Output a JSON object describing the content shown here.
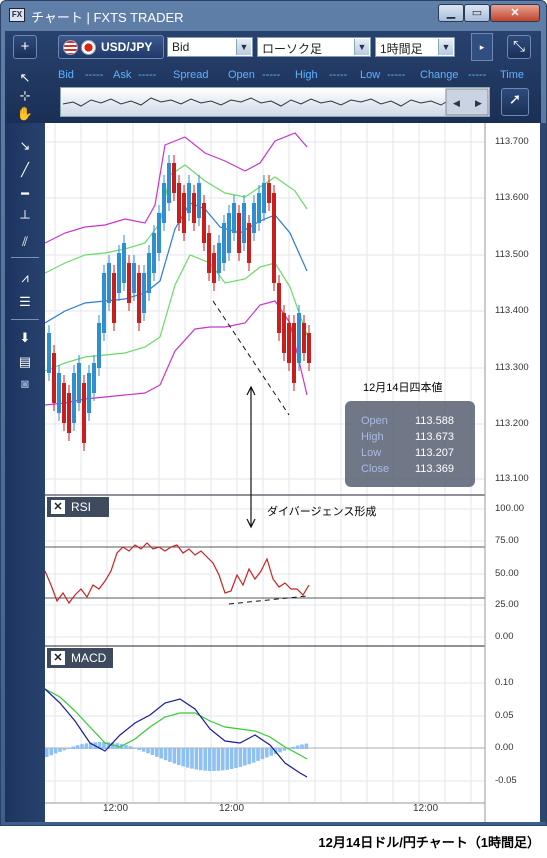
{
  "window": {
    "title": "チャート | FXTS TRADER",
    "icon_text": "FX"
  },
  "toolbar": {
    "add_symbol": "+",
    "symbol": "USD/JPY",
    "price_type": "Bid",
    "chart_type": "ローソク足",
    "timeframe": "1時間足",
    "quote_labels": [
      {
        "label": "Bid",
        "value": "-----"
      },
      {
        "label": "Ask",
        "value": "-----"
      },
      {
        "label": "Spread",
        "value": ""
      },
      {
        "label": "Open",
        "value": "-----"
      },
      {
        "label": "High",
        "value": "-----"
      },
      {
        "label": "Low",
        "value": "-----"
      },
      {
        "label": "Change",
        "value": "-----"
      },
      {
        "label": "Time",
        "value": ""
      }
    ]
  },
  "icons": [
    "cursor-icon",
    "crosshair-icon",
    "hand-icon",
    "line-tool-icon",
    "trendline-icon",
    "horizontal-line-icon",
    "vertical-line-icon",
    "channel-icon",
    "fibonacci-icon",
    "fib-retracement-icon",
    "download-icon",
    "list-icon",
    "camera-icon"
  ],
  "colors": {
    "candle_up": "#2f8fd0",
    "candle_down": "#c81e1e",
    "bollinger_outer": "#cc33cc",
    "bollinger_inner": "#66dd66",
    "moving_average": "#2a7bd8",
    "rsi_line": "#cc2222",
    "macd_line": "#1a1aa0",
    "signal_line": "#33cc33",
    "macd_histogram": "#8ec0f0"
  },
  "price_axis": [
    "113.700",
    "113.600",
    "113.500",
    "113.400",
    "113.300",
    "113.200",
    "113.100"
  ],
  "time_axis": [
    "12:00",
    "12:00",
    "12:00"
  ],
  "annotations": {
    "ohlc_title": "12月14日四本値",
    "divergence": "ダイバージェンス形成"
  },
  "ohlc": [
    {
      "label": "Open",
      "value": "113.588"
    },
    {
      "label": "High",
      "value": "113.673"
    },
    {
      "label": "Low",
      "value": "113.207"
    },
    {
      "label": "Close",
      "value": "113.369"
    }
  ],
  "rsi": {
    "label": "RSI",
    "axis": [
      "100.00",
      "75.00",
      "50.00",
      "25.00",
      "0.00"
    ],
    "levels": [
      70,
      30
    ]
  },
  "macd": {
    "label": "MACD",
    "axis": [
      "0.10",
      "0.05",
      "0.00",
      "-0.05"
    ]
  },
  "caption": "12月14日ドル/円チャート（1時間足）"
}
